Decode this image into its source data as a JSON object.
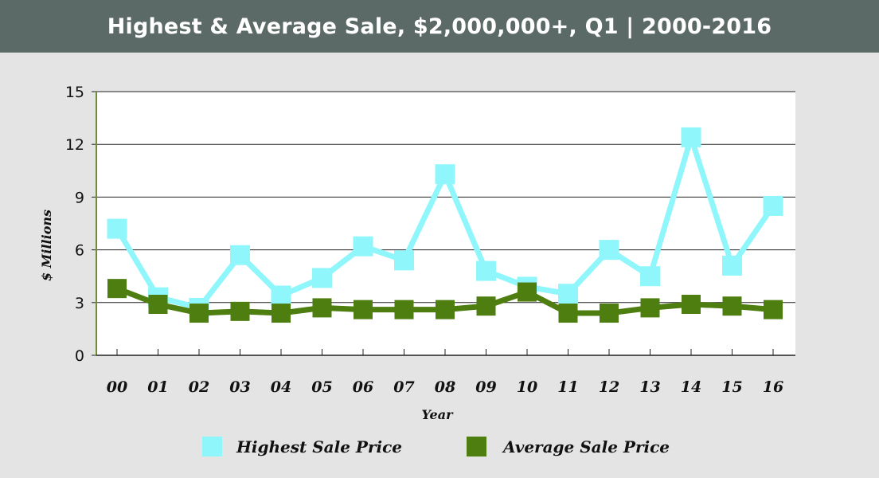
{
  "header": {
    "title": "Highest & Average Sale, $2,000,000+, Q1 | 2000-2016"
  },
  "chart_data": {
    "type": "line",
    "title": "Highest & Average Sale, $2,000,000+, Q1 | 2000-2016",
    "xlabel": "Year",
    "ylabel": "$ Millions",
    "categories": [
      "00",
      "01",
      "02",
      "03",
      "04",
      "05",
      "06",
      "07",
      "08",
      "09",
      "10",
      "11",
      "12",
      "13",
      "14",
      "15",
      "16"
    ],
    "ylim": [
      0,
      15
    ],
    "yticks": [
      "0",
      "3",
      "6",
      "9",
      "12",
      "15"
    ],
    "grid": true,
    "legend_position": "bottom",
    "series": [
      {
        "name": "Highest Sale Price",
        "color": "#8ff6fb",
        "values": [
          7.2,
          3.3,
          2.7,
          5.7,
          3.4,
          4.4,
          6.2,
          5.4,
          10.3,
          4.8,
          3.9,
          3.5,
          6.0,
          4.5,
          12.4,
          5.1,
          8.5
        ]
      },
      {
        "name": "Average Sale Price",
        "color": "#4e7d10",
        "values": [
          3.8,
          2.9,
          2.4,
          2.5,
          2.4,
          2.7,
          2.6,
          2.6,
          2.6,
          2.8,
          3.6,
          2.4,
          2.4,
          2.7,
          2.9,
          2.8,
          2.6
        ]
      }
    ]
  }
}
